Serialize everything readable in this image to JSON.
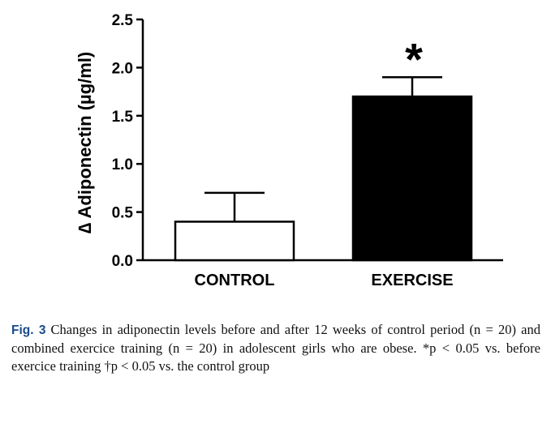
{
  "chart_data": {
    "type": "bar",
    "categories": [
      "CONTROL",
      "EXERCISE"
    ],
    "values": [
      0.4,
      1.7
    ],
    "error_upper": [
      0.3,
      0.2
    ],
    "bar_colors": [
      "#ffffff",
      "#000000"
    ],
    "ylabel": "∆ Adiponectin (µg/ml)",
    "ylim": [
      0.0,
      2.5
    ],
    "yticks": [
      "0.0",
      "0.5",
      "1.0",
      "1.5",
      "2.0",
      "2.5"
    ],
    "ytick_values": [
      0.0,
      0.5,
      1.0,
      1.5,
      2.0,
      2.5
    ],
    "annotations": [
      {
        "category": "EXERCISE",
        "text": "*"
      }
    ],
    "grid": false
  },
  "caption": {
    "label": "Fig. 3",
    "text": "Changes in adiponectin levels before and after 12 weeks of control period (n = 20) and combined exercice training (n = 20) in adolescent girls who are obese. *p < 0.05 vs. before exercice training †p < 0.05 vs. the control group"
  }
}
